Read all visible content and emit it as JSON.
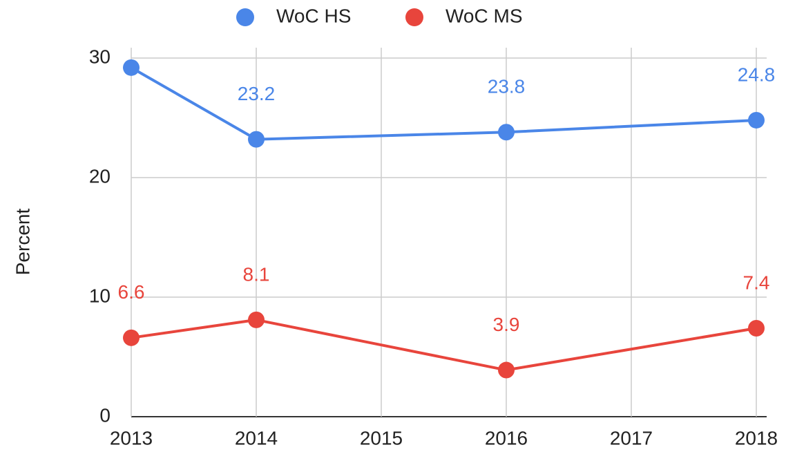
{
  "chart_data": {
    "type": "line",
    "y_label": "Percent",
    "x": [
      2013,
      2014,
      2016,
      2018
    ],
    "series": [
      {
        "name": "WoC HS",
        "color": "#4a86e8",
        "values": [
          29.2,
          23.2,
          23.8,
          24.8
        ],
        "value_labels": [
          null,
          "23.2",
          "23.8",
          "24.8"
        ]
      },
      {
        "name": "WoC MS",
        "color": "#e8453c",
        "values": [
          6.6,
          8.1,
          3.9,
          7.4
        ],
        "value_labels": [
          "6.6",
          "8.1",
          "3.9",
          "7.4"
        ]
      }
    ],
    "xlim": [
      2013,
      2018
    ],
    "xticks": [
      2013,
      2014,
      2015,
      2016,
      2017,
      2018
    ],
    "ylim": [
      0,
      30
    ],
    "yticks": [
      0,
      10,
      20,
      30
    ],
    "grid": true,
    "legend": "top"
  }
}
